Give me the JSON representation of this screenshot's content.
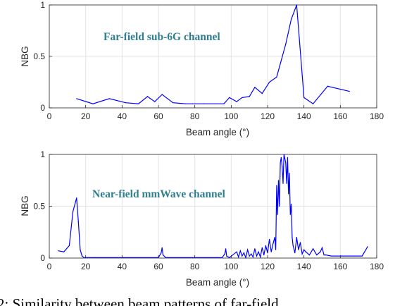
{
  "chart_data": [
    {
      "type": "line",
      "annotation": "Far-field sub-6G channel",
      "xlabel": "Beam angle (°)",
      "ylabel": "NBG",
      "xlim": [
        0,
        180
      ],
      "ylim": [
        0,
        1
      ],
      "xticks": [
        0,
        20,
        40,
        60,
        80,
        100,
        120,
        140,
        160,
        180
      ],
      "yticks": [
        0,
        0.5,
        1
      ],
      "ytick_labels": [
        "0",
        "0.5",
        "1"
      ],
      "grid": true,
      "color": "#0000ff",
      "x": [
        15,
        24,
        33,
        42,
        49,
        54,
        58,
        62,
        68,
        75,
        85,
        96,
        99,
        103,
        106,
        110,
        113,
        117,
        121,
        125,
        130,
        133,
        136,
        140,
        145,
        153,
        165
      ],
      "y": [
        0.09,
        0.04,
        0.09,
        0.05,
        0.04,
        0.11,
        0.06,
        0.13,
        0.05,
        0.04,
        0.04,
        0.04,
        0.1,
        0.06,
        0.1,
        0.11,
        0.2,
        0.14,
        0.25,
        0.3,
        0.62,
        0.86,
        1.0,
        0.1,
        0.04,
        0.21,
        0.16
      ]
    },
    {
      "type": "line",
      "annotation": "Near-field mmWave channel",
      "xlabel": "Beam angle (°)",
      "ylabel": "NBG",
      "xlim": [
        0,
        180
      ],
      "ylim": [
        0,
        1
      ],
      "xticks": [
        0,
        20,
        40,
        60,
        80,
        100,
        120,
        140,
        160,
        180
      ],
      "yticks": [
        0,
        0.5,
        1
      ],
      "ytick_labels": [
        "0",
        "0.5",
        "1"
      ],
      "grid": true,
      "color": "#0000ff",
      "x": [
        5,
        8,
        11,
        13,
        15,
        16,
        17,
        18,
        19,
        25,
        40,
        60,
        61.5,
        62,
        62.5,
        64,
        80,
        95,
        96.5,
        97,
        97.5,
        99,
        103,
        104,
        105,
        106,
        107,
        108,
        109,
        110,
        111,
        112,
        113,
        114,
        115,
        116,
        117,
        118,
        119,
        120,
        121,
        122,
        123,
        124,
        124.5,
        125,
        125.5,
        126,
        126.5,
        127,
        127.5,
        128,
        128.5,
        129,
        129.5,
        130,
        130.5,
        131,
        131.5,
        132,
        132.5,
        133,
        133.5,
        134,
        135,
        136,
        137,
        138,
        139,
        140,
        141,
        143,
        145,
        147,
        149,
        150,
        151,
        152,
        155,
        160,
        168,
        172,
        175
      ],
      "y": [
        0.07,
        0.06,
        0.12,
        0.45,
        0.58,
        0.35,
        0.08,
        0.02,
        0.005,
        0.005,
        0.005,
        0.005,
        0.05,
        0.1,
        0.03,
        0.005,
        0.005,
        0.005,
        0.04,
        0.09,
        0.02,
        0.005,
        0.06,
        0.01,
        0.07,
        0.02,
        0.05,
        0.005,
        0.08,
        0.02,
        0.04,
        0.01,
        0.09,
        0.02,
        0.06,
        0.01,
        0.1,
        0.03,
        0.12,
        0.05,
        0.18,
        0.06,
        0.14,
        0.2,
        0.08,
        0.7,
        0.42,
        0.75,
        0.5,
        0.92,
        0.97,
        0.88,
        0.72,
        1.0,
        0.96,
        0.92,
        0.72,
        0.97,
        0.62,
        0.82,
        0.42,
        0.52,
        0.2,
        0.12,
        0.05,
        0.2,
        0.08,
        0.15,
        0.04,
        0.08,
        0.06,
        0.03,
        0.09,
        0.03,
        0.06,
        0.1,
        0.03,
        0.03,
        0.02,
        0.02,
        0.02,
        0.02,
        0.11
      ]
    }
  ],
  "caption": "2: Similarity between beam patterns of far-field"
}
